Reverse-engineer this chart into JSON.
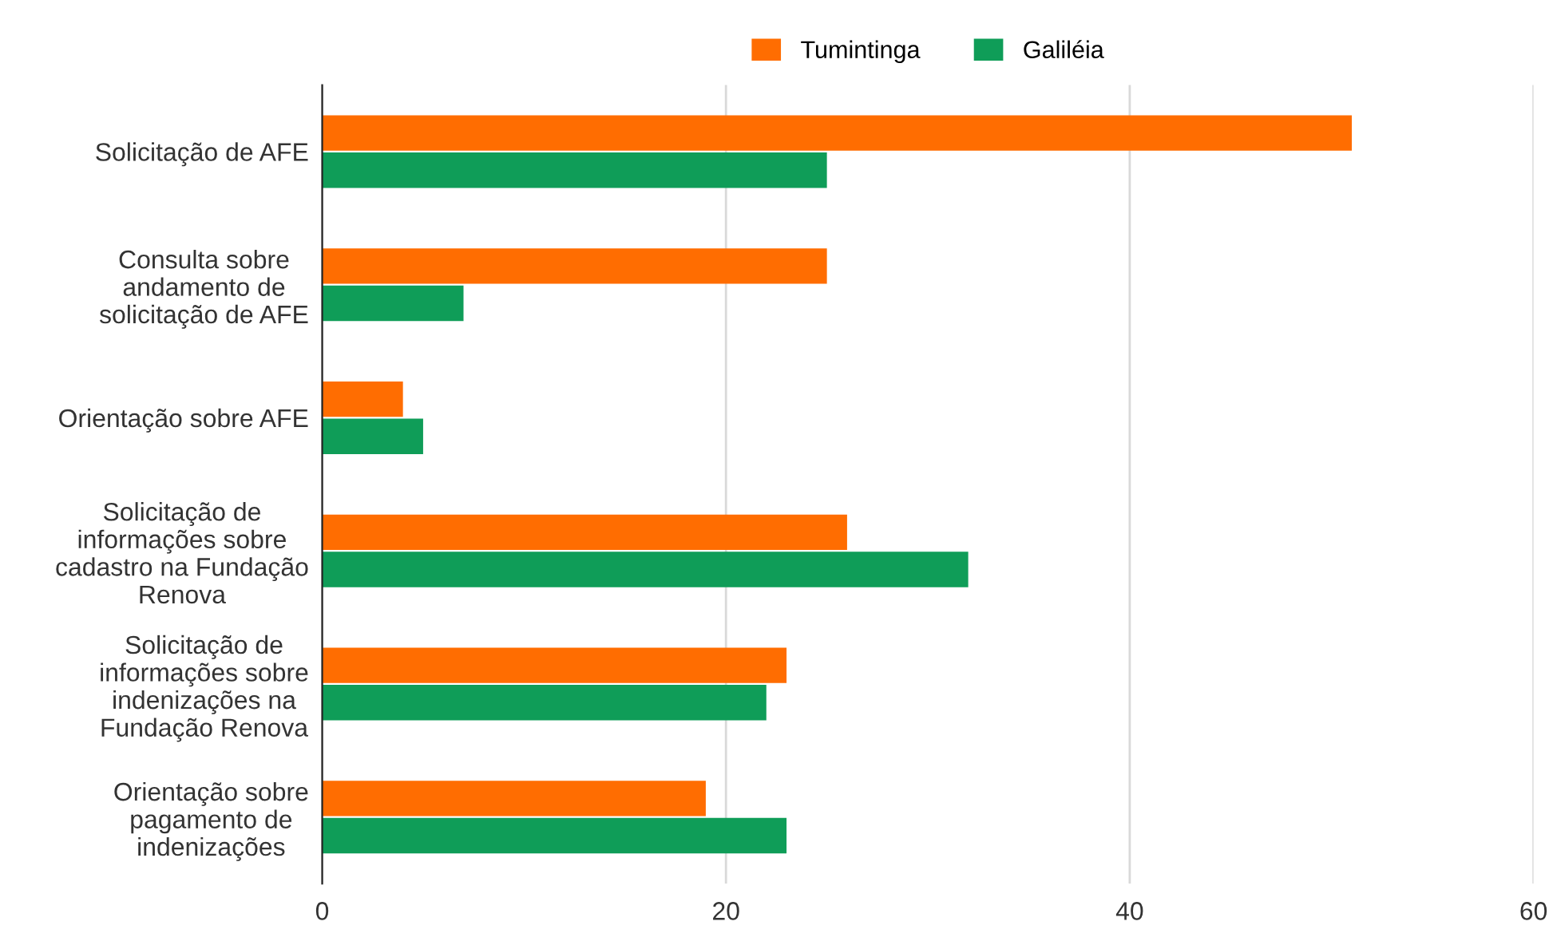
{
  "chart_data": {
    "type": "bar",
    "orientation": "horizontal",
    "categories": [
      "Solicitação de AFE",
      "Consulta sobre\nandamento de\nsolicitação de AFE",
      "Orientação sobre AFE",
      "Solicitação de\ninformações sobre\ncadastro na Fundação\nRenova",
      "Solicitação de\ninformações sobre\nindenizações na\nFundação Renova",
      "Orientação sobre\npagamento de\nindenizações"
    ],
    "series": [
      {
        "name": "Tumintinga",
        "color": "#ff6d01",
        "values": [
          51,
          25,
          4,
          26,
          23,
          19
        ]
      },
      {
        "name": "Galiléia",
        "color": "#0f9d58",
        "values": [
          25,
          7,
          5,
          32,
          22,
          23
        ]
      }
    ],
    "xlim": [
      0,
      60
    ],
    "xticks": [
      0,
      20,
      40,
      60
    ],
    "grid": "x",
    "legend": "top"
  }
}
